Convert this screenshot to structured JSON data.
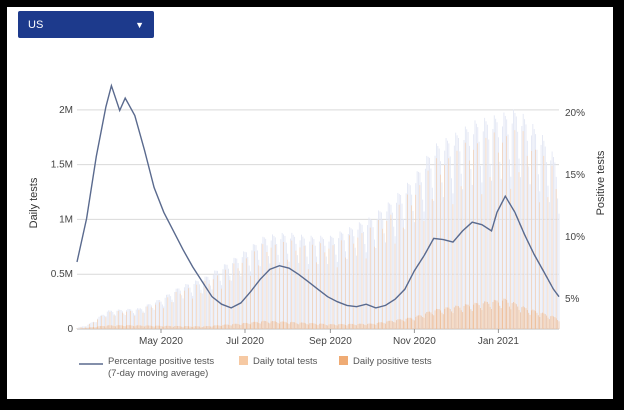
{
  "selector": {
    "label": "US"
  },
  "chart_data": {
    "type": "bar+line",
    "y_left": {
      "label": "Daily tests",
      "ticks": [
        "0",
        "0.5M",
        "1M",
        "1.5M",
        "2M"
      ],
      "tick_values": [
        0,
        500000,
        1000000,
        1500000,
        2000000
      ],
      "range": [
        0,
        2300000
      ]
    },
    "y_right": {
      "label": "Positive tests",
      "ticks": [
        "5%",
        "10%",
        "15%",
        "20%"
      ],
      "tick_values": [
        5,
        10,
        15,
        20
      ],
      "range": [
        2.6,
        22.9
      ]
    },
    "x_ticks": [
      "May 2020",
      "Jul 2020",
      "Sep 2020",
      "Nov 2020",
      "Jan 2021"
    ],
    "x_tick_dates": [
      "2020-05-01",
      "2020-07-01",
      "2020-09-01",
      "2020-11-01",
      "2021-01-01"
    ],
    "x_range": [
      "2020-03-01",
      "2021-02-14"
    ],
    "grid": true,
    "legend": {
      "position": "bottom",
      "line_label_1": "Percentage positive tests",
      "line_label_2": "(7-day moving average)",
      "total_label": "Daily total tests",
      "positive_label": "Daily positive tests"
    },
    "colors": {
      "line": "#5a6a8e",
      "total": "#f6c9a3",
      "total_faint": "#e3e7f4",
      "positive": "#efab74",
      "grid": "#d9d9d9"
    },
    "series": [
      {
        "name": "Percentage positive tests (7-day moving average)",
        "points": [
          [
            "2020-03-01",
            8.0
          ],
          [
            "2020-03-08",
            11.5
          ],
          [
            "2020-03-15",
            16.5
          ],
          [
            "2020-03-22",
            20.5
          ],
          [
            "2020-03-26",
            22.2
          ],
          [
            "2020-04-01",
            20.2
          ],
          [
            "2020-04-05",
            21.2
          ],
          [
            "2020-04-12",
            19.8
          ],
          [
            "2020-04-19",
            17.0
          ],
          [
            "2020-04-26",
            14.0
          ],
          [
            "2020-05-03",
            12.0
          ],
          [
            "2020-05-10",
            10.5
          ],
          [
            "2020-05-17",
            9.0
          ],
          [
            "2020-05-24",
            7.6
          ],
          [
            "2020-05-31",
            6.4
          ],
          [
            "2020-06-07",
            5.2
          ],
          [
            "2020-06-14",
            4.6
          ],
          [
            "2020-06-21",
            4.3
          ],
          [
            "2020-06-28",
            4.7
          ],
          [
            "2020-07-05",
            5.6
          ],
          [
            "2020-07-12",
            6.6
          ],
          [
            "2020-07-19",
            7.4
          ],
          [
            "2020-07-26",
            7.7
          ],
          [
            "2020-08-02",
            7.5
          ],
          [
            "2020-08-09",
            7.0
          ],
          [
            "2020-08-16",
            6.4
          ],
          [
            "2020-08-23",
            5.8
          ],
          [
            "2020-08-30",
            5.2
          ],
          [
            "2020-09-06",
            4.8
          ],
          [
            "2020-09-13",
            4.5
          ],
          [
            "2020-09-20",
            4.4
          ],
          [
            "2020-09-27",
            4.6
          ],
          [
            "2020-10-04",
            4.3
          ],
          [
            "2020-10-11",
            4.5
          ],
          [
            "2020-10-18",
            5.0
          ],
          [
            "2020-10-25",
            5.8
          ],
          [
            "2020-11-01",
            7.3
          ],
          [
            "2020-11-08",
            8.5
          ],
          [
            "2020-11-15",
            9.9
          ],
          [
            "2020-11-22",
            9.8
          ],
          [
            "2020-11-29",
            9.6
          ],
          [
            "2020-12-06",
            10.5
          ],
          [
            "2020-12-13",
            11.2
          ],
          [
            "2020-12-20",
            11.0
          ],
          [
            "2020-12-27",
            10.5
          ],
          [
            "2020-12-31",
            12.0
          ],
          [
            "2021-01-06",
            13.3
          ],
          [
            "2021-01-13",
            12.0
          ],
          [
            "2021-01-20",
            10.2
          ],
          [
            "2021-01-27",
            8.6
          ],
          [
            "2021-02-03",
            7.2
          ],
          [
            "2021-02-10",
            5.8
          ],
          [
            "2021-02-14",
            5.2
          ]
        ]
      },
      {
        "name": "Daily total tests",
        "weekly_avg": [
          [
            "2020-03-01",
            10000
          ],
          [
            "2020-03-08",
            30000
          ],
          [
            "2020-03-15",
            80000
          ],
          [
            "2020-03-22",
            150000
          ],
          [
            "2020-04-01",
            160000
          ],
          [
            "2020-04-15",
            170000
          ],
          [
            "2020-05-01",
            250000
          ],
          [
            "2020-05-15",
            350000
          ],
          [
            "2020-06-01",
            420000
          ],
          [
            "2020-06-15",
            520000
          ],
          [
            "2020-07-01",
            640000
          ],
          [
            "2020-07-15",
            760000
          ],
          [
            "2020-08-01",
            790000
          ],
          [
            "2020-08-15",
            760000
          ],
          [
            "2020-09-01",
            760000
          ],
          [
            "2020-09-15",
            830000
          ],
          [
            "2020-10-01",
            920000
          ],
          [
            "2020-10-15",
            1050000
          ],
          [
            "2020-11-01",
            1250000
          ],
          [
            "2020-11-15",
            1500000
          ],
          [
            "2020-12-01",
            1600000
          ],
          [
            "2020-12-15",
            1700000
          ],
          [
            "2021-01-01",
            1750000
          ],
          [
            "2021-01-15",
            1800000
          ],
          [
            "2021-02-01",
            1600000
          ],
          [
            "2021-02-14",
            1350000
          ]
        ]
      },
      {
        "name": "Daily positive tests",
        "weekly_avg": [
          [
            "2020-03-01",
            1000
          ],
          [
            "2020-03-22",
            30000
          ],
          [
            "2020-04-05",
            32000
          ],
          [
            "2020-05-01",
            27000
          ],
          [
            "2020-06-01",
            22000
          ],
          [
            "2020-07-01",
            50000
          ],
          [
            "2020-07-15",
            68000
          ],
          [
            "2020-08-01",
            60000
          ],
          [
            "2020-09-01",
            40000
          ],
          [
            "2020-10-01",
            45000
          ],
          [
            "2020-11-01",
            100000
          ],
          [
            "2020-11-15",
            160000
          ],
          [
            "2020-12-01",
            190000
          ],
          [
            "2021-01-06",
            250000
          ],
          [
            "2021-01-20",
            180000
          ],
          [
            "2021-02-14",
            90000
          ]
        ]
      }
    ]
  }
}
